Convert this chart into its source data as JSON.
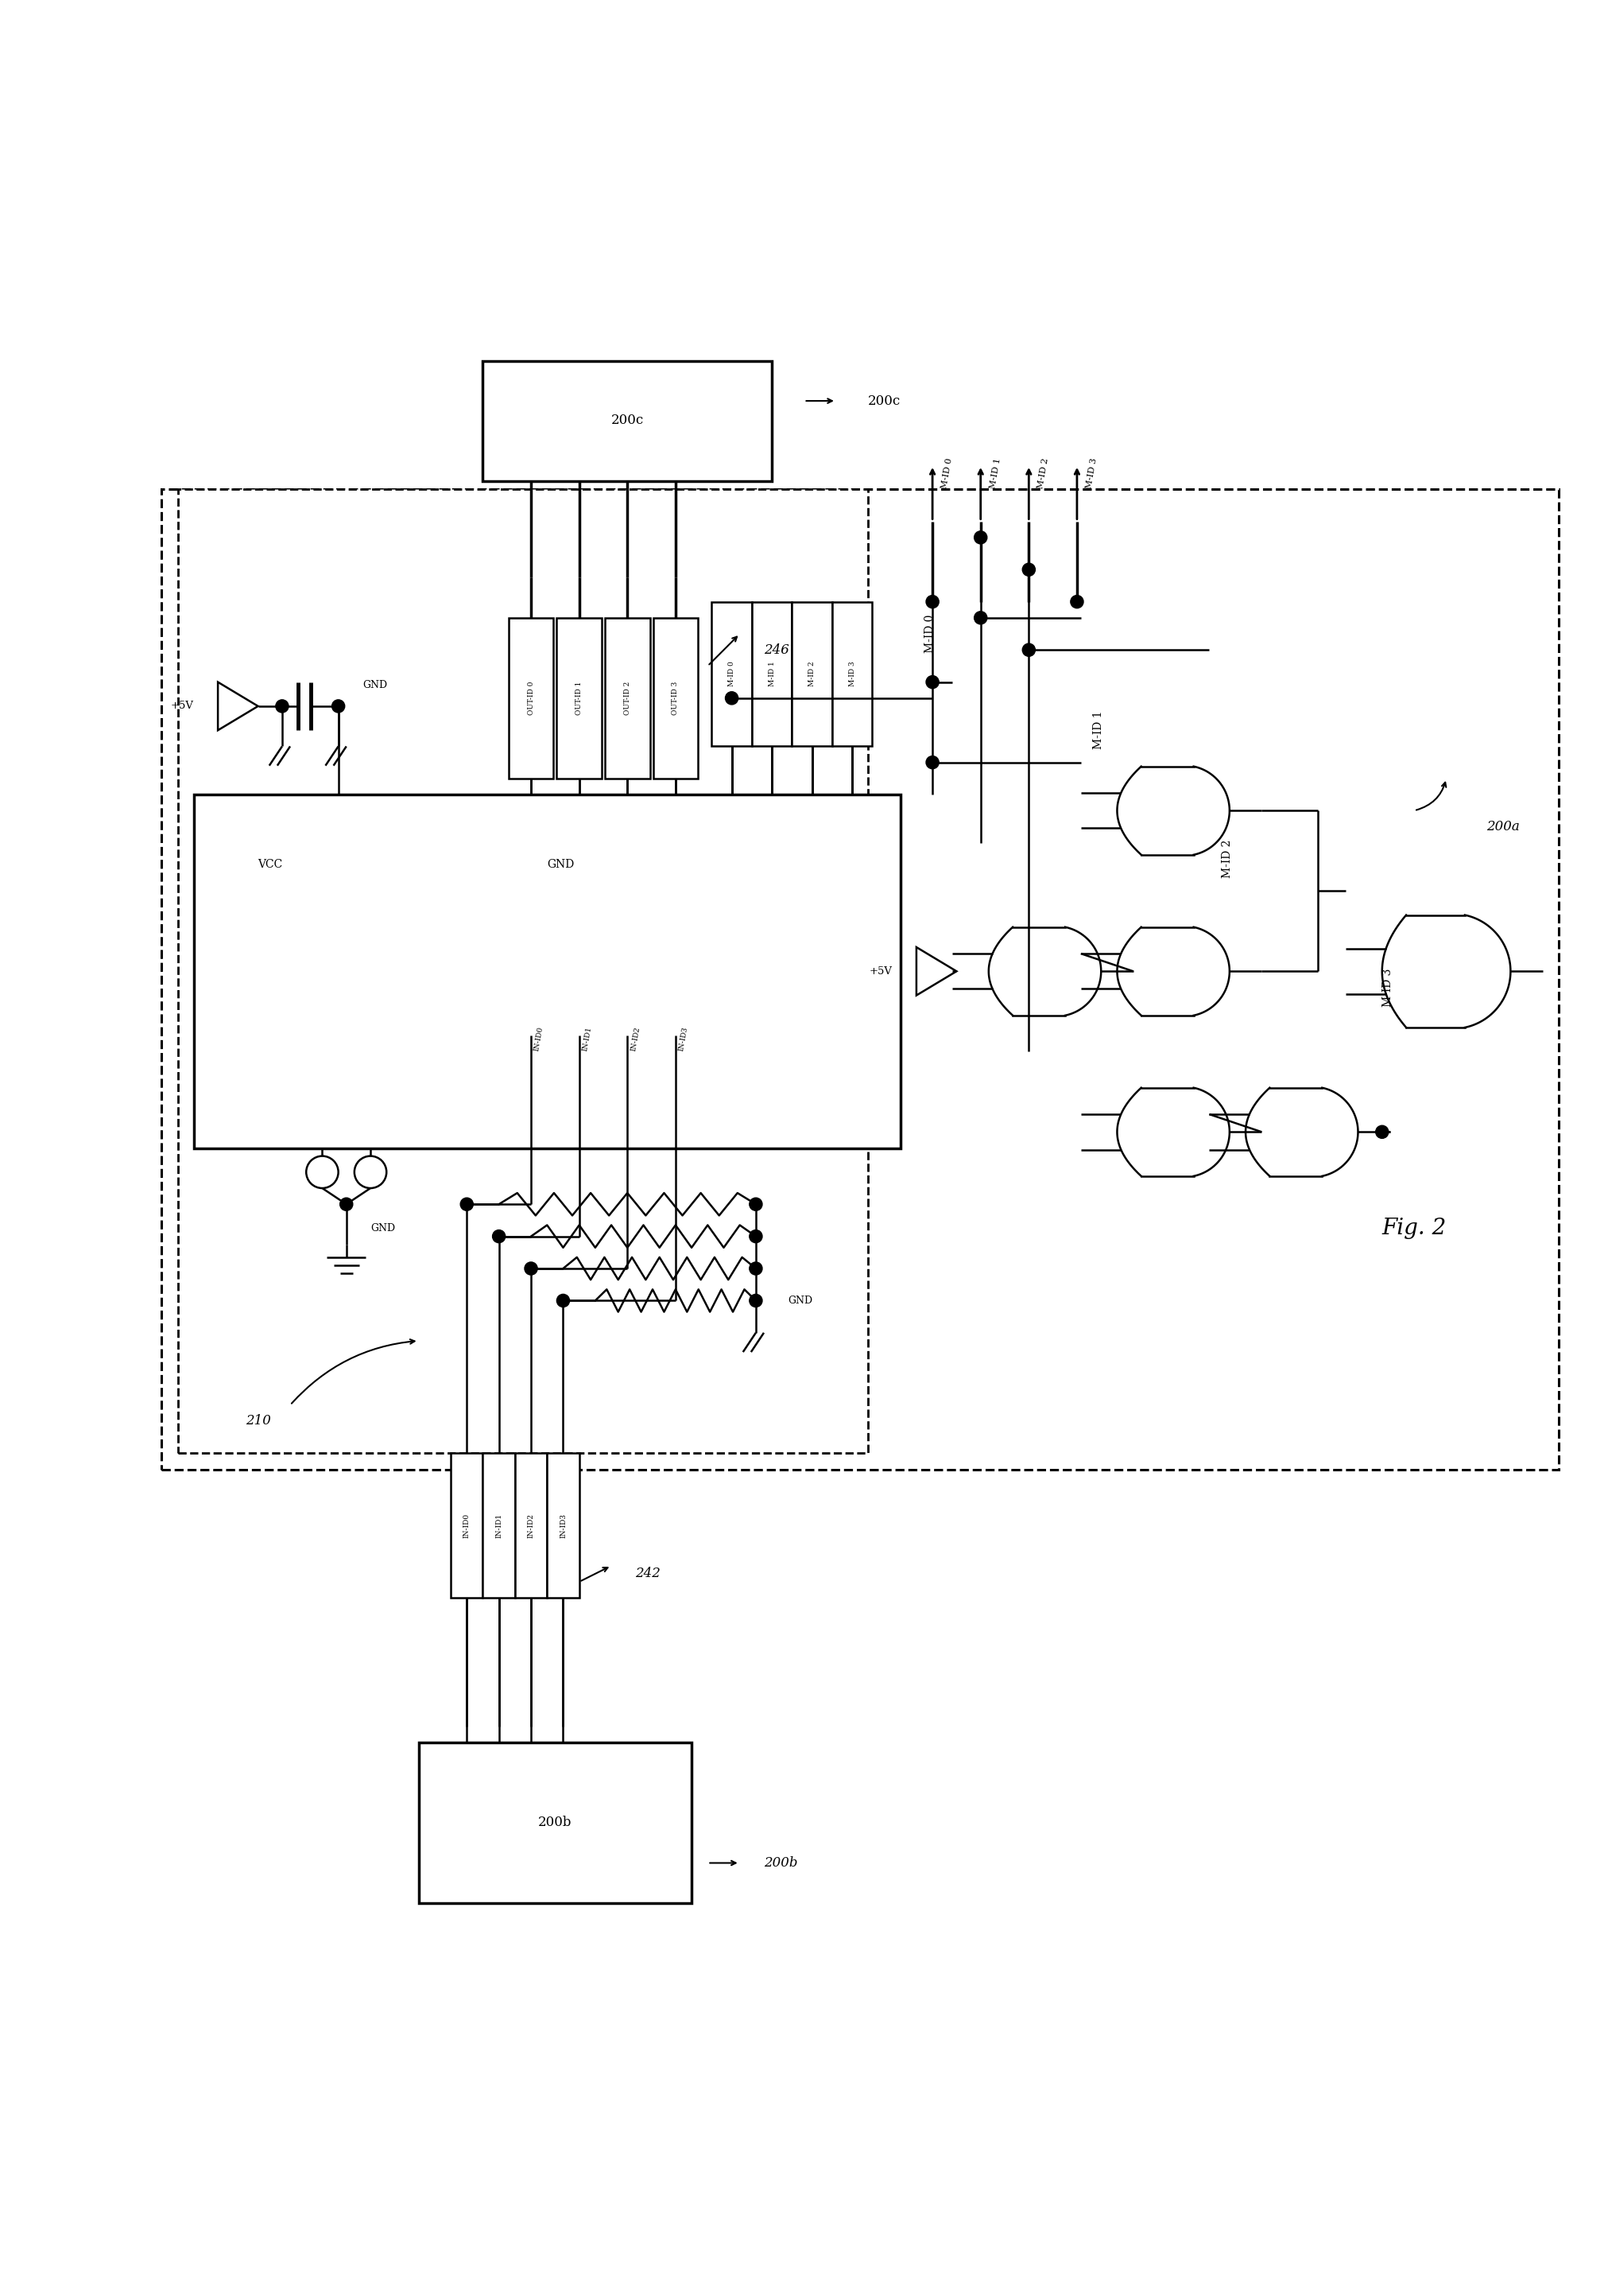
{
  "bg": "#ffffff",
  "fig2": "Fig. 2",
  "l200a": "200a",
  "l200b": "200b",
  "l200c": "200c",
  "l210": "210",
  "l242": "242",
  "l246": "246",
  "vcc": "VCC",
  "gnd": "GND",
  "v5": "+5V",
  "out_id": [
    "OUT-ID 0",
    "OUT-ID 1",
    "OUT-ID 2",
    "OUT-ID 3"
  ],
  "m_id": [
    "M-ID 0",
    "M-ID 1",
    "M-ID 2",
    "M-ID 3"
  ],
  "in_id": [
    "IN-ID0",
    "IN-ID1",
    "IN-ID2",
    "IN-ID3"
  ],
  "m_id_h": [
    "M-ID 0",
    "M-ID 1",
    "M-ID 2",
    "M-ID 3"
  ],
  "mid_v": [
    "M-ID 0",
    "M-ID 1",
    "M-ID 2",
    "M-ID 3"
  ]
}
